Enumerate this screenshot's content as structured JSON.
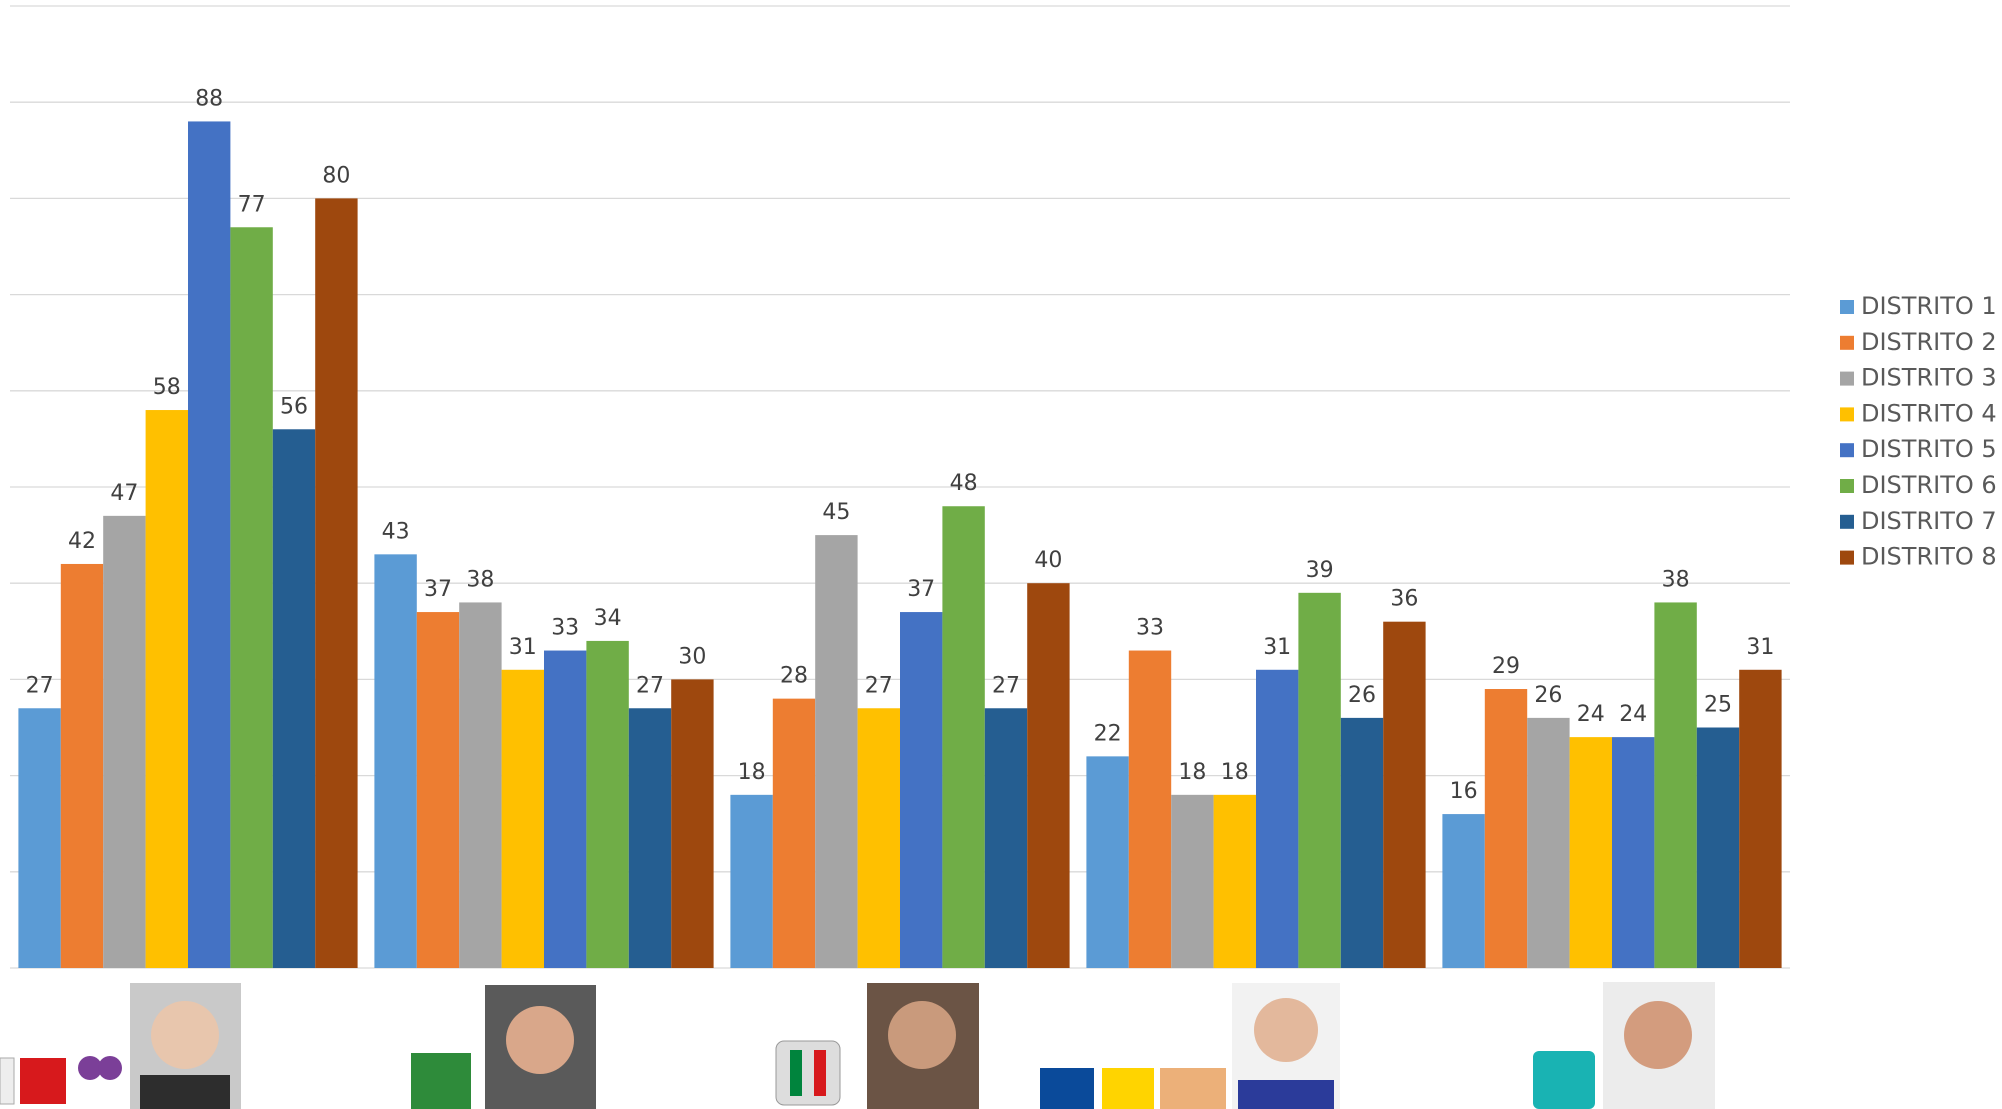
{
  "chart_data": {
    "type": "bar",
    "categories": [
      null,
      null,
      null,
      null,
      null
    ],
    "series": [
      {
        "name": "DISTRITO 1",
        "color": "#5b9bd5",
        "values": [
          27,
          43,
          18,
          22,
          16
        ]
      },
      {
        "name": "DISTRITO 2",
        "color": "#ed7d31",
        "values": [
          42,
          37,
          28,
          33,
          29
        ]
      },
      {
        "name": "DISTRITO 3",
        "color": "#a5a5a5",
        "values": [
          47,
          38,
          45,
          18,
          26
        ]
      },
      {
        "name": "DISTRITO 4",
        "color": "#ffc000",
        "values": [
          58,
          31,
          27,
          18,
          24
        ]
      },
      {
        "name": "DISTRITO 5",
        "color": "#4472c4",
        "values": [
          88,
          33,
          37,
          31,
          24
        ]
      },
      {
        "name": "DISTRITO 6",
        "color": "#70ad47",
        "values": [
          77,
          34,
          48,
          39,
          38
        ]
      },
      {
        "name": "DISTRITO 7",
        "color": "#255e91",
        "values": [
          56,
          27,
          27,
          26,
          25
        ]
      },
      {
        "name": "DISTRITO 8",
        "color": "#9e480e",
        "values": [
          80,
          30,
          40,
          36,
          31
        ]
      }
    ],
    "ylim": [
      0,
      100
    ],
    "yticks": [
      0,
      10,
      20,
      30,
      40,
      50,
      60,
      70,
      80,
      90,
      100
    ],
    "grid": true,
    "legend": "right"
  }
}
